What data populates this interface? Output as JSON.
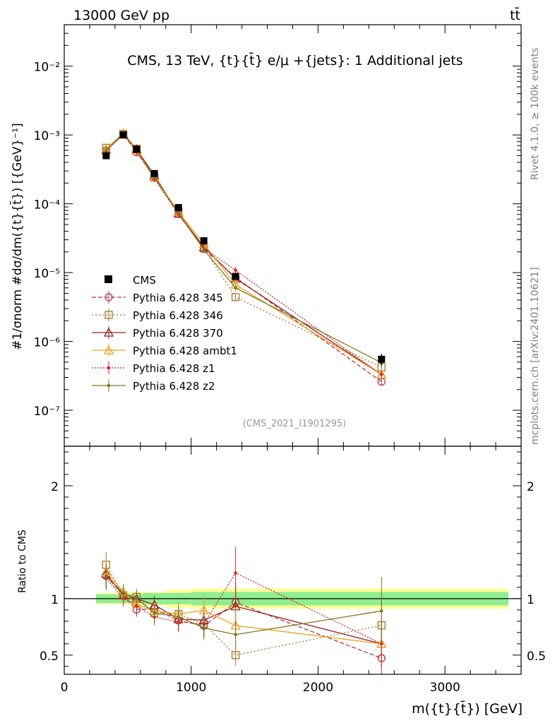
{
  "header": {
    "energy_label": "13000 GeV pp",
    "process_label": "tt̄"
  },
  "side_labels": {
    "rivet": "Rivet 4.1.0, ≥ 100k events",
    "mcplots": "mcplots.cern.ch [arXiv:2401.10621]"
  },
  "chart_data": {
    "type": "line",
    "title": "CMS, 13 TeV, {t}{t̄} e/μ +{jets}: 1 Additional jets",
    "watermark": "(CMS_2021_I1901295)",
    "xlabel": "m({t}{t̄}) [GeV]",
    "ylabel": "#1/σnorm #dσ/dm({t}{t̄}) [{GeV}⁻¹]",
    "xlim": [
      0,
      3600
    ],
    "ylim": [
      3e-08,
      0.04
    ],
    "x_ticks": [
      0,
      1000,
      2000,
      3000
    ],
    "x_tick_labels": [
      "0",
      "1000",
      "2000",
      "3000"
    ],
    "y_ticks": [
      1e-07,
      1e-06,
      1e-05,
      0.0001,
      0.001,
      0.01
    ],
    "y_tick_labels": [
      "10⁻⁷",
      "10⁻⁶",
      "10⁻⁵",
      "10⁻⁴",
      "10⁻³",
      "10⁻²"
    ],
    "bins": [
      [
        250,
        410
      ],
      [
        410,
        520
      ],
      [
        520,
        620
      ],
      [
        620,
        800
      ],
      [
        800,
        1000
      ],
      [
        1000,
        1200
      ],
      [
        1200,
        1500
      ],
      [
        1500,
        3500
      ]
    ],
    "x": [
      330,
      465,
      570,
      710,
      900,
      1100,
      1350,
      2500
    ],
    "series": [
      {
        "name": "CMS",
        "kind": "data",
        "color": "#000000",
        "values": [
          0.0005,
          0.001,
          0.00062,
          0.000275,
          8.8e-05,
          2.9e-05,
          8.8e-06,
          5.5e-07
        ],
        "errors": [
          0.03,
          0.02,
          0.02,
          0.03,
          0.05,
          0.07,
          0.1,
          0.2
        ]
      },
      {
        "name": "Pythia 6.428 345",
        "kind": "mc",
        "color": "#bb3344",
        "marker": "circle",
        "dash": "6,3",
        "values": [
          0.0006,
          0.00103,
          0.00056,
          0.00025,
          7.1e-05,
          2.2e-05,
          8.5e-06,
          2.6e-07
        ]
      },
      {
        "name": "Pythia 6.428 346",
        "kind": "mc",
        "color": "#a07830",
        "marker": "square",
        "dash": "2,3",
        "values": [
          0.00065,
          0.00103,
          0.00063,
          0.00024,
          7.6e-05,
          2.25e-05,
          4.4e-06,
          4.2e-07
        ]
      },
      {
        "name": "Pythia 6.428 370",
        "kind": "mc",
        "color": "#992222",
        "marker": "triangle",
        "dash": "",
        "values": [
          0.00061,
          0.00103,
          0.00062,
          0.00026,
          7.2e-05,
          2.35e-05,
          8.2e-06,
          3.3e-07
        ]
      },
      {
        "name": "Pythia 6.428 ambt1",
        "kind": "mc",
        "color": "#f0a020",
        "marker": "triangle",
        "dash": "",
        "values": [
          0.00062,
          0.00106,
          0.00059,
          0.000245,
          7.6e-05,
          2.6e-05,
          6.7e-06,
          3.3e-07
        ]
      },
      {
        "name": "Pythia 6.428 z1",
        "kind": "mc",
        "color": "#dd2222",
        "marker": "dot",
        "dash": "2,2",
        "values": [
          0.00059,
          0.001,
          0.00058,
          0.00023,
          7e-05,
          2.25e-05,
          1.08e-05,
          3.3e-07
        ]
      },
      {
        "name": "Pythia 6.428 z2",
        "kind": "mc",
        "color": "#7a7a20",
        "marker": "dot",
        "dash": "",
        "values": [
          0.0006,
          0.00105,
          0.00062,
          0.00024,
          7.4e-05,
          2.15e-05,
          6e-06,
          4.9e-07
        ]
      }
    ],
    "ratio": {
      "ylabel": "Ratio to CMS",
      "ylim": [
        0.33,
        2.35
      ],
      "y_ticks": [
        0.5,
        1,
        2
      ],
      "y_tick_labels": [
        "0.5",
        "1",
        "2"
      ],
      "band_inner": [
        0.04,
        0.04,
        0.04,
        0.05,
        0.05,
        0.06,
        0.06,
        0.06
      ],
      "band_outer": [
        0.05,
        0.05,
        0.06,
        0.06,
        0.08,
        0.09,
        0.09,
        0.09
      ],
      "band_inner_color": "#90ee90",
      "band_outer_color": "#ffff99"
    }
  }
}
